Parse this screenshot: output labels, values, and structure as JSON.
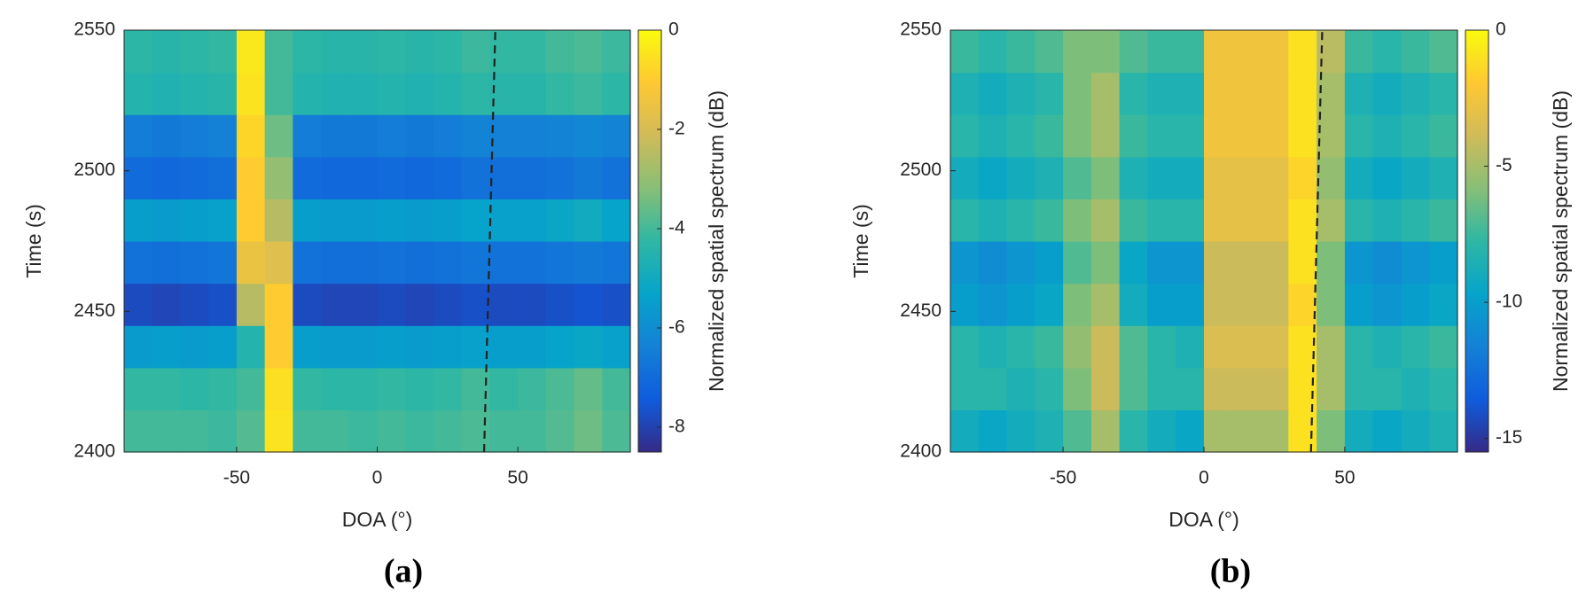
{
  "chart_data": [
    {
      "type": "heatmap",
      "panel_label": "(a)",
      "xlabel": "DOA (°)",
      "ylabel": "Time (s)",
      "colorbar_label": "Normalized spatial spectrum (dB)",
      "xlim": [
        -90,
        90
      ],
      "xticks": [
        -50,
        0,
        50
      ],
      "ylim": [
        2400,
        2550
      ],
      "yticks": [
        2400,
        2450,
        2500,
        2550
      ],
      "clim": [
        -8.5,
        0
      ],
      "cticks": [
        -8,
        -6,
        -4,
        -2,
        0
      ],
      "colormap": [
        "#352a87",
        "#0f5cdd",
        "#1481d6",
        "#06a4ca",
        "#2eb7a4",
        "#87bf77",
        "#d1bb59",
        "#fec832",
        "#f9fb0e"
      ],
      "xbins": [
        -90,
        -80,
        -70,
        -60,
        -50,
        -40,
        -30,
        -20,
        -10,
        0,
        10,
        20,
        30,
        40,
        50,
        60,
        70,
        80,
        90
      ],
      "ybins": [
        2400,
        2415,
        2430,
        2445,
        2460,
        2475,
        2490,
        2505,
        2520,
        2535,
        2550
      ],
      "values": [
        [
          -4,
          -4,
          -4,
          -4.1,
          -3.8,
          -0.5,
          -4,
          -4,
          -4.1,
          -4,
          -4.1,
          -4,
          -3.9,
          -4,
          -4,
          -3.8,
          -3.5,
          -3.9
        ],
        [
          -4.2,
          -4.2,
          -4.3,
          -4.2,
          -4,
          -0.6,
          -4.2,
          -4.3,
          -4.3,
          -4.2,
          -4.3,
          -4.2,
          -4,
          -4.2,
          -4.1,
          -3.9,
          -3.6,
          -4
        ],
        [
          -5.6,
          -5.5,
          -5.6,
          -5.5,
          -4.5,
          -1,
          -5.5,
          -5.6,
          -5.6,
          -5.5,
          -5.6,
          -5.5,
          -5.4,
          -5.5,
          -5.5,
          -5.3,
          -5.2,
          -5.4
        ],
        [
          -7.8,
          -7.9,
          -7.8,
          -7.7,
          -2.5,
          -1,
          -7.8,
          -7.9,
          -7.9,
          -7.8,
          -7.9,
          -7.8,
          -7.7,
          -7.8,
          -7.8,
          -7.7,
          -7.6,
          -7.7
        ],
        [
          -6.8,
          -6.9,
          -6.8,
          -6.7,
          -1.5,
          -1.8,
          -6.8,
          -6.9,
          -6.9,
          -6.8,
          -6.9,
          -6.8,
          -6.7,
          -6.8,
          -6.8,
          -6.7,
          -6.6,
          -6.7
        ],
        [
          -5.5,
          -5.6,
          -5.5,
          -5.4,
          -1,
          -2.5,
          -5.5,
          -5.6,
          -5.6,
          -5.5,
          -5.6,
          -5.5,
          -5.3,
          -5.4,
          -5.4,
          -5.2,
          -5,
          -5.3
        ],
        [
          -7,
          -7.1,
          -7,
          -6.9,
          -1,
          -3,
          -7,
          -7.1,
          -7.1,
          -7,
          -7.1,
          -7,
          -6.8,
          -6.9,
          -6.9,
          -6.8,
          -6.6,
          -6.8
        ],
        [
          -6.5,
          -6.6,
          -6.5,
          -6.4,
          -0.8,
          -3.5,
          -6.5,
          -6.6,
          -6.6,
          -6.5,
          -6.6,
          -6.5,
          -6.3,
          -6.4,
          -6.4,
          -6.3,
          -6.2,
          -6.3
        ],
        [
          -4.5,
          -4.6,
          -4.5,
          -4.4,
          -0.5,
          -4,
          -4.5,
          -4.6,
          -4.6,
          -4.5,
          -4.6,
          -4.5,
          -4.3,
          -4.4,
          -4.4,
          -4.2,
          -4.1,
          -4.3
        ],
        [
          -4.3,
          -4.4,
          -4.3,
          -4.2,
          -0.4,
          -4,
          -4.3,
          -4.4,
          -4.4,
          -4.3,
          -4.4,
          -4.3,
          -4.1,
          -4.2,
          -4.2,
          -4,
          -3.9,
          -4.1
        ]
      ],
      "reference_line": {
        "x": [
          38,
          42
        ],
        "y": [
          2400,
          2550
        ],
        "color": "#222222"
      }
    },
    {
      "type": "heatmap",
      "panel_label": "(b)",
      "xlabel": "DOA (°)",
      "ylabel": "Time (s)",
      "colorbar_label": "Normalized spatial spectrum (dB)",
      "xlim": [
        -90,
        90
      ],
      "xticks": [
        -50,
        0,
        50
      ],
      "ylim": [
        2400,
        2550
      ],
      "yticks": [
        2400,
        2450,
        2500,
        2550
      ],
      "clim": [
        -15.5,
        0
      ],
      "cticks": [
        -15,
        -10,
        -5,
        0
      ],
      "colormap": [
        "#352a87",
        "#0f5cdd",
        "#1481d6",
        "#06a4ca",
        "#2eb7a4",
        "#87bf77",
        "#d1bb59",
        "#fec832",
        "#f9fb0e"
      ],
      "xbins": [
        -90,
        -80,
        -70,
        -60,
        -50,
        -40,
        -30,
        -20,
        -10,
        0,
        10,
        20,
        30,
        40,
        50,
        60,
        70,
        80,
        90
      ],
      "ybins": [
        2400,
        2415,
        2430,
        2445,
        2460,
        2475,
        2490,
        2505,
        2520,
        2535,
        2550
      ],
      "values": [
        [
          -9,
          -9.5,
          -9,
          -8.5,
          -7,
          -5,
          -8,
          -9,
          -9.5,
          -5,
          -5,
          -5,
          -1,
          -6,
          -9,
          -9.5,
          -9,
          -8.5
        ],
        [
          -8,
          -8,
          -8.5,
          -8,
          -6,
          -4,
          -7,
          -8,
          -8,
          -4,
          -4,
          -4,
          -1,
          -5,
          -8,
          -8,
          -8.5,
          -8
        ],
        [
          -8,
          -8.5,
          -8,
          -7.5,
          -5.5,
          -4,
          -7,
          -8,
          -8.5,
          -3.5,
          -3.5,
          -3.5,
          -1,
          -5,
          -8,
          -8.5,
          -8,
          -7.5
        ],
        [
          -10,
          -10.5,
          -10,
          -9.5,
          -6,
          -5,
          -9,
          -10,
          -10,
          -4,
          -4,
          -4,
          -1.5,
          -6,
          -10,
          -10.5,
          -10,
          -9.5
        ],
        [
          -10.5,
          -11,
          -10.5,
          -10,
          -7,
          -6,
          -9.5,
          -10.5,
          -10.5,
          -4,
          -4,
          -4,
          -1,
          -6,
          -10.5,
          -11,
          -10.5,
          -10
        ],
        [
          -8,
          -8.5,
          -8,
          -7.5,
          -6,
          -5,
          -7.5,
          -8,
          -8,
          -3,
          -3,
          -3,
          -1,
          -5,
          -8,
          -8.5,
          -8,
          -7.5
        ],
        [
          -9,
          -9.5,
          -9,
          -8.5,
          -7,
          -6,
          -8.5,
          -9,
          -9,
          -3,
          -3,
          -3,
          -1.5,
          -5.5,
          -9,
          -9.5,
          -9,
          -8.5
        ],
        [
          -8,
          -8.5,
          -8,
          -7.5,
          -6,
          -5,
          -7.5,
          -8,
          -8,
          -2.5,
          -2.5,
          -2.5,
          -1,
          -5,
          -8,
          -8.5,
          -8,
          -7.5
        ],
        [
          -8.5,
          -9,
          -8.5,
          -8,
          -6,
          -5,
          -8,
          -8.5,
          -8.5,
          -2.5,
          -2.5,
          -2.5,
          -1,
          -5,
          -8.5,
          -9,
          -8.5,
          -8
        ],
        [
          -7.5,
          -8,
          -7.5,
          -7,
          -6,
          -6,
          -7,
          -7.5,
          -7.5,
          -2.5,
          -2.5,
          -2.5,
          -1,
          -4.5,
          -7.5,
          -8,
          -7.5,
          -7
        ]
      ],
      "reference_line": {
        "x": [
          38,
          42
        ],
        "y": [
          2400,
          2550
        ],
        "color": "#222222"
      }
    }
  ]
}
